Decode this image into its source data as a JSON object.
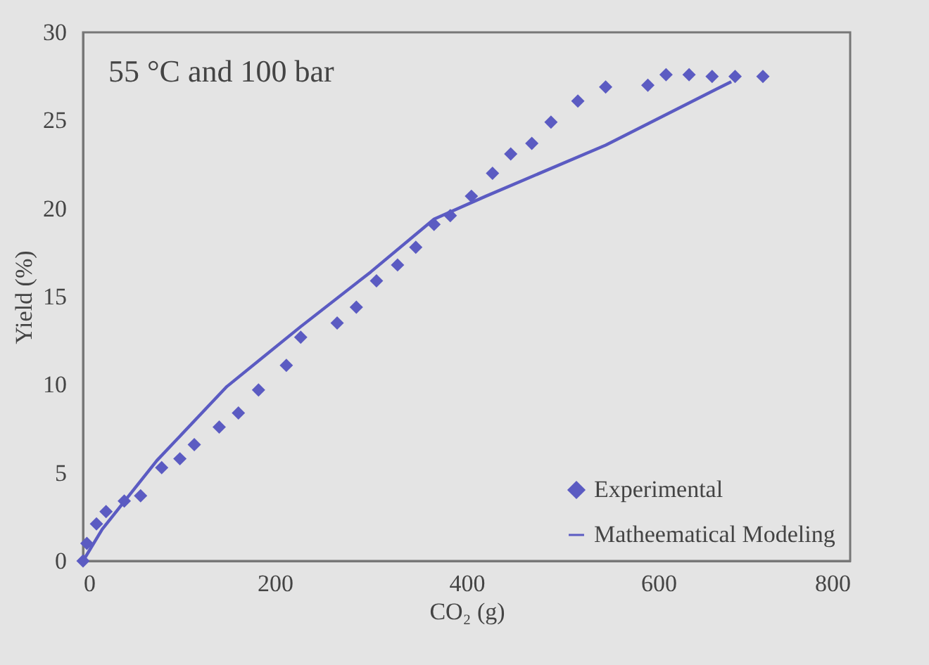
{
  "chart_data": {
    "type": "scatter",
    "xlabel": "CO₂ (g)",
    "ylabel": "Yield (%)",
    "annotations": [
      "55 °C and 100 bar"
    ],
    "xlim": [
      0,
      800
    ],
    "xticks": [
      0,
      200,
      400,
      600,
      800
    ],
    "ylim": [
      0,
      30
    ],
    "yticks": [
      0,
      5,
      10,
      15,
      20,
      25,
      30
    ],
    "grid": false,
    "legend": "bottom right",
    "series": [
      {
        "name": "Experimental",
        "type": "scatter",
        "marker": "diamond",
        "color": "#5b5bc2",
        "x": [
          0,
          4,
          14,
          24,
          43,
          60,
          82,
          101,
          116,
          142,
          162,
          183,
          212,
          227,
          265,
          285,
          306,
          328,
          347,
          366,
          383,
          405,
          427,
          446,
          468,
          488,
          516,
          545,
          589,
          608,
          632,
          656,
          680,
          709
        ],
        "values": [
          0,
          1.0,
          2.1,
          2.8,
          3.4,
          3.7,
          5.3,
          5.8,
          6.6,
          7.6,
          8.4,
          9.7,
          11.1,
          12.7,
          13.5,
          14.4,
          15.9,
          16.8,
          17.8,
          19.1,
          19.6,
          20.7,
          22.0,
          23.1,
          23.7,
          24.9,
          26.1,
          26.9,
          27.0,
          27.6,
          27.6,
          27.5,
          27.5,
          27.5
        ]
      },
      {
        "name": "Matheematical Modeling",
        "type": "line",
        "line_style": "solid",
        "color": "#5b5bc2",
        "x": [
          0,
          20,
          77,
          150,
          227,
          300,
          366,
          420,
          545,
          676
        ],
        "values": [
          0,
          1.8,
          5.7,
          9.9,
          13.3,
          16.4,
          19.4,
          20.7,
          23.6,
          27.2
        ]
      }
    ]
  }
}
